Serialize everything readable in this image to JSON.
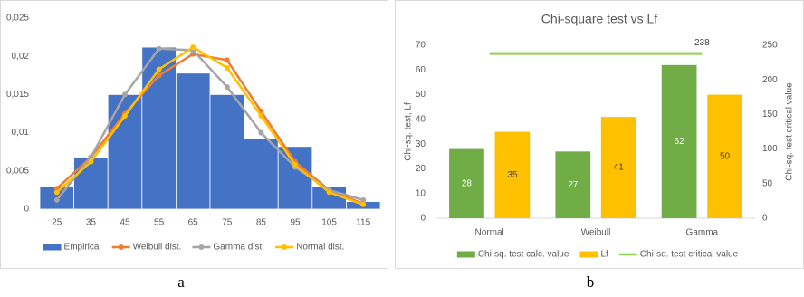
{
  "chart_data": [
    {
      "type": "combo",
      "panel_label": "a",
      "categories": [
        "25",
        "35",
        "45",
        "55",
        "65",
        "75",
        "85",
        "95",
        "105",
        "115"
      ],
      "series": [
        {
          "name": "Empirical",
          "type": "bar",
          "color": "#4472c4",
          "values": [
            0.003,
            0.0068,
            0.015,
            0.0212,
            0.0178,
            0.015,
            0.0092,
            0.0082,
            0.003,
            0.001
          ]
        },
        {
          "name": "Weibull dist.",
          "type": "line",
          "color": "#ed7d31",
          "values": [
            0.0027,
            0.0068,
            0.0125,
            0.0175,
            0.0203,
            0.0195,
            0.0128,
            0.0062,
            0.0025,
            0.0007
          ]
        },
        {
          "name": "Gamma dist.",
          "type": "line",
          "color": "#a5a5a5",
          "values": [
            0.0012,
            0.0068,
            0.015,
            0.021,
            0.0208,
            0.016,
            0.01,
            0.0055,
            0.0025,
            0.0012
          ]
        },
        {
          "name": "Normal dist.",
          "type": "line",
          "color": "#ffc000",
          "values": [
            0.0022,
            0.0062,
            0.0122,
            0.0183,
            0.0212,
            0.0185,
            0.0122,
            0.0058,
            0.0022,
            0.0006
          ]
        }
      ],
      "markers": true,
      "data_labels": false,
      "grid": false,
      "ylim": [
        0,
        0.025
      ],
      "yticks": [
        0,
        {
          "value": 0.005,
          "label": "0,005"
        },
        {
          "value": 0.01,
          "label": "0,01"
        },
        {
          "value": 0.015,
          "label": "0,015"
        },
        {
          "value": 0.02,
          "label": "0,02"
        },
        {
          "value": 0.025,
          "label": "0,025"
        }
      ],
      "legend": "bottom"
    },
    {
      "type": "combo",
      "panel_label": "b",
      "title": "Chi-square test vs Lf",
      "y_label": "Chi-sq. test, Lf",
      "y2_label": "Chi-sq. test critical value",
      "categories": [
        "Normal",
        "Weibull",
        "Gamma"
      ],
      "series": [
        {
          "name": "Chi-sq. test calc. value",
          "type": "bar",
          "color": "#70ad47",
          "values": [
            28,
            27,
            62
          ]
        },
        {
          "name": "Lf",
          "type": "bar",
          "color": "#ffc000",
          "values": [
            35,
            41,
            50
          ]
        },
        {
          "name": "Chi-sq. test critical value",
          "type": "line",
          "color": "#92d050",
          "axis": "y2",
          "values": [
            238,
            238,
            238
          ]
        }
      ],
      "markers": false,
      "data_labels": true,
      "grid": false,
      "ylim": [
        0,
        70
      ],
      "yticks": [
        0,
        10,
        20,
        30,
        40,
        50,
        60,
        70
      ],
      "y2lim": [
        0,
        250
      ],
      "y2ticks": [
        0,
        50,
        100,
        150,
        200,
        250
      ],
      "legend": "bottom"
    }
  ]
}
